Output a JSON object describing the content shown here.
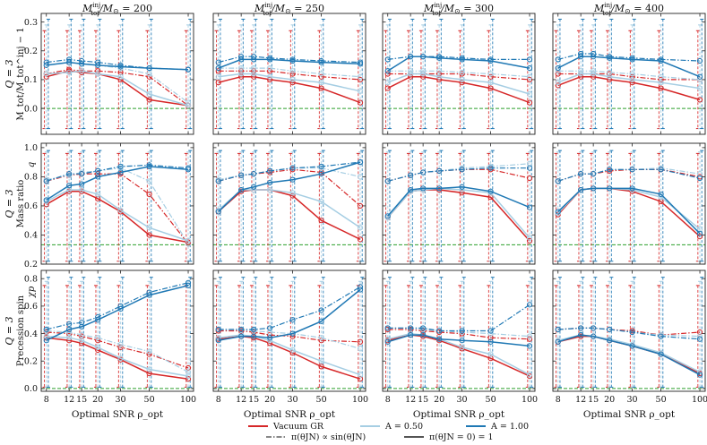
{
  "figure": {
    "col_titles": [
      "M_tot^inj/M_sun = 200",
      "M_tot^inj/M_sun = 250",
      "M_tot^inj/M_sun = 300",
      "M_tot^inj/M_sun = 400"
    ],
    "col_title_parts": [
      {
        "pre": "M",
        "sup": "inj",
        "sub": "tot",
        "post": "/M",
        "sun": "⊙",
        "eq": " = 200"
      },
      {
        "pre": "M",
        "sup": "inj",
        "sub": "tot",
        "post": "/M",
        "sun": "⊙",
        "eq": " = 250"
      },
      {
        "pre": "M",
        "sup": "inj",
        "sub": "tot",
        "post": "/M",
        "sun": "⊙",
        "eq": " = 300"
      },
      {
        "pre": "M",
        "sup": "inj",
        "sub": "tot",
        "post": "/M",
        "sun": "⊙",
        "eq": " = 400"
      }
    ],
    "row_labels": [
      {
        "line1": "Q = 3",
        "line2": "M_tot/M_tot^inj − 1",
        "param": ""
      },
      {
        "line1": "Q = 3",
        "line2": "Mass ratio",
        "param": "q"
      },
      {
        "line1": "Q = 3",
        "line2": "Precession spin",
        "param": "χp"
      }
    ],
    "xlabel": "Optimal SNR ρ_opt",
    "xticks": [
      "8",
      "12",
      "15",
      "20",
      "30",
      "50",
      "100"
    ],
    "yticks": [
      [
        "0.0",
        "0.1",
        "0.2",
        "0.3"
      ],
      [
        "0.2",
        "0.4",
        "0.6",
        "0.8",
        "1.0"
      ],
      [
        "0.0",
        "0.2",
        "0.4",
        "0.6",
        "0.8"
      ]
    ]
  },
  "legend": {
    "items": [
      {
        "label": "Vacuum GR",
        "color": "#d62728",
        "style": "solid"
      },
      {
        "label": "A = 0.50",
        "color": "#a6cee3",
        "style": "solid"
      },
      {
        "label": "A = 1.00",
        "color": "#1f78b4",
        "style": "solid"
      },
      {
        "label": "π(θJN) ∝ sin(θJN)",
        "color": "#888888",
        "style": "dashdot"
      },
      {
        "label": "π(θJN = 0) = 1",
        "color": "#555555",
        "style": "solid"
      }
    ]
  },
  "chart_data": {
    "type": "line",
    "x": [
      8,
      12,
      15,
      20,
      30,
      50,
      100
    ],
    "xscale": "log",
    "xlim": [
      7.3,
      110
    ],
    "colors": {
      "gr": "#d62728",
      "a05": "#a6cee3",
      "a10": "#1f78b4",
      "truth": "#2ca02c"
    },
    "rows": [
      {
        "name": "mass",
        "ylim": [
          -0.09,
          0.33
        ],
        "truth": 0.0
      },
      {
        "name": "q",
        "ylim": [
          0.2,
          1.03
        ],
        "truth": 0.333
      },
      {
        "name": "chip",
        "ylim": [
          -0.02,
          0.86
        ],
        "truth": 0.0
      }
    ],
    "panels": [
      [
        {
          "gr_s": [
            0.11,
            0.13,
            0.125,
            0.12,
            0.1,
            0.03,
            0.01
          ],
          "gr_d": [
            0.12,
            0.135,
            0.13,
            0.13,
            0.125,
            0.11,
            0.01
          ],
          "a05_s": [
            0.12,
            0.125,
            0.13,
            0.12,
            0.11,
            0.05,
            0.01
          ],
          "a05_d": [
            0.15,
            0.16,
            0.155,
            0.15,
            0.14,
            0.12,
            0.02
          ],
          "a10_s": [
            0.15,
            0.16,
            0.155,
            0.15,
            0.145,
            0.14,
            0.135
          ],
          "a10_d": [
            0.16,
            0.17,
            0.165,
            0.16,
            0.15,
            0.14,
            0.135
          ]
        },
        {
          "gr_s": [
            0.09,
            0.11,
            0.11,
            0.1,
            0.09,
            0.07,
            0.02
          ],
          "gr_d": [
            0.13,
            0.13,
            0.13,
            0.13,
            0.12,
            0.11,
            0.1
          ],
          "a05_s": [
            0.11,
            0.12,
            0.12,
            0.11,
            0.1,
            0.09,
            0.06
          ],
          "a05_d": [
            0.14,
            0.14,
            0.14,
            0.14,
            0.13,
            0.12,
            0.11
          ],
          "a10_s": [
            0.14,
            0.17,
            0.17,
            0.17,
            0.165,
            0.16,
            0.155
          ],
          "a10_d": [
            0.16,
            0.18,
            0.18,
            0.175,
            0.17,
            0.165,
            0.16
          ]
        },
        {
          "gr_s": [
            0.07,
            0.11,
            0.11,
            0.1,
            0.09,
            0.07,
            0.02
          ],
          "gr_d": [
            0.12,
            0.12,
            0.12,
            0.12,
            0.12,
            0.11,
            0.1
          ],
          "a05_s": [
            0.09,
            0.12,
            0.12,
            0.11,
            0.1,
            0.09,
            0.05
          ],
          "a05_d": [
            0.13,
            0.13,
            0.13,
            0.13,
            0.125,
            0.12,
            0.11
          ],
          "a10_s": [
            0.13,
            0.18,
            0.18,
            0.175,
            0.17,
            0.165,
            0.14
          ],
          "a10_d": [
            0.17,
            0.18,
            0.18,
            0.18,
            0.175,
            0.17,
            0.17
          ]
        },
        {
          "gr_s": [
            0.08,
            0.11,
            0.11,
            0.1,
            0.09,
            0.07,
            0.03
          ],
          "gr_d": [
            0.12,
            0.12,
            0.12,
            0.12,
            0.11,
            0.1,
            0.1
          ],
          "a05_s": [
            0.09,
            0.12,
            0.12,
            0.11,
            0.1,
            0.09,
            0.07
          ],
          "a05_d": [
            0.13,
            0.13,
            0.13,
            0.125,
            0.12,
            0.11,
            0.1
          ],
          "a10_s": [
            0.14,
            0.18,
            0.18,
            0.175,
            0.17,
            0.165,
            0.11
          ],
          "a10_d": [
            0.17,
            0.19,
            0.19,
            0.18,
            0.175,
            0.17,
            0.165
          ]
        }
      ],
      [
        {
          "gr_s": [
            0.61,
            0.7,
            0.7,
            0.65,
            0.56,
            0.4,
            0.35
          ],
          "gr_d": [
            0.77,
            0.81,
            0.82,
            0.82,
            0.82,
            0.68,
            0.34
          ],
          "a05_s": [
            0.63,
            0.71,
            0.71,
            0.68,
            0.57,
            0.45,
            0.36
          ],
          "a05_d": [
            0.78,
            0.81,
            0.83,
            0.84,
            0.86,
            0.77,
            0.34
          ],
          "a10_s": [
            0.64,
            0.74,
            0.75,
            0.8,
            0.83,
            0.87,
            0.85
          ],
          "a10_d": [
            0.77,
            0.82,
            0.82,
            0.84,
            0.87,
            0.88,
            0.86
          ]
        },
        {
          "gr_s": [
            0.56,
            0.7,
            0.71,
            0.71,
            0.67,
            0.5,
            0.37
          ],
          "gr_d": [
            0.77,
            0.81,
            0.82,
            0.83,
            0.85,
            0.83,
            0.6
          ],
          "a05_s": [
            0.57,
            0.71,
            0.71,
            0.71,
            0.69,
            0.63,
            0.45
          ],
          "a05_d": [
            0.78,
            0.81,
            0.82,
            0.84,
            0.86,
            0.86,
            0.8
          ],
          "a10_s": [
            0.56,
            0.71,
            0.73,
            0.76,
            0.78,
            0.82,
            0.9
          ],
          "a10_d": [
            0.77,
            0.81,
            0.82,
            0.84,
            0.86,
            0.87,
            0.9
          ]
        },
        {
          "gr_s": [
            0.52,
            0.7,
            0.71,
            0.71,
            0.69,
            0.66,
            0.36
          ],
          "gr_d": [
            0.77,
            0.81,
            0.83,
            0.84,
            0.85,
            0.85,
            0.79
          ],
          "a05_s": [
            0.52,
            0.7,
            0.71,
            0.72,
            0.71,
            0.69,
            0.38
          ],
          "a05_d": [
            0.77,
            0.81,
            0.83,
            0.84,
            0.86,
            0.87,
            0.89
          ],
          "a10_s": [
            0.53,
            0.71,
            0.72,
            0.72,
            0.73,
            0.7,
            0.59
          ],
          "a10_d": [
            0.77,
            0.81,
            0.83,
            0.84,
            0.85,
            0.86,
            0.86
          ]
        },
        {
          "gr_s": [
            0.54,
            0.71,
            0.72,
            0.72,
            0.7,
            0.63,
            0.39
          ],
          "gr_d": [
            0.77,
            0.82,
            0.82,
            0.84,
            0.85,
            0.85,
            0.8
          ],
          "a05_s": [
            0.55,
            0.71,
            0.72,
            0.72,
            0.71,
            0.66,
            0.44
          ],
          "a05_d": [
            0.77,
            0.82,
            0.82,
            0.85,
            0.85,
            0.86,
            0.82
          ],
          "a10_s": [
            0.56,
            0.71,
            0.72,
            0.72,
            0.72,
            0.68,
            0.41
          ],
          "a10_d": [
            0.77,
            0.82,
            0.82,
            0.85,
            0.85,
            0.85,
            0.79
          ]
        }
      ],
      [
        {
          "gr_s": [
            0.37,
            0.35,
            0.33,
            0.28,
            0.21,
            0.11,
            0.07
          ],
          "gr_d": [
            0.41,
            0.4,
            0.38,
            0.35,
            0.3,
            0.25,
            0.15
          ],
          "a05_s": [
            0.38,
            0.37,
            0.35,
            0.3,
            0.22,
            0.14,
            0.09
          ],
          "a05_d": [
            0.42,
            0.41,
            0.39,
            0.37,
            0.32,
            0.27,
            0.12
          ],
          "a10_s": [
            0.35,
            0.43,
            0.45,
            0.5,
            0.58,
            0.68,
            0.75
          ],
          "a10_d": [
            0.43,
            0.47,
            0.48,
            0.52,
            0.6,
            0.7,
            0.77
          ]
        },
        {
          "gr_s": [
            0.36,
            0.38,
            0.37,
            0.33,
            0.26,
            0.16,
            0.07
          ],
          "gr_d": [
            0.42,
            0.42,
            0.41,
            0.39,
            0.38,
            0.35,
            0.34
          ],
          "a05_s": [
            0.37,
            0.39,
            0.38,
            0.35,
            0.28,
            0.2,
            0.1
          ],
          "a05_d": [
            0.43,
            0.43,
            0.42,
            0.41,
            0.4,
            0.37,
            0.29
          ],
          "a10_s": [
            0.35,
            0.38,
            0.38,
            0.37,
            0.4,
            0.49,
            0.72
          ],
          "a10_d": [
            0.43,
            0.43,
            0.43,
            0.44,
            0.5,
            0.57,
            0.74
          ]
        },
        {
          "gr_s": [
            0.35,
            0.39,
            0.38,
            0.35,
            0.29,
            0.22,
            0.09
          ],
          "gr_d": [
            0.43,
            0.43,
            0.42,
            0.41,
            0.4,
            0.37,
            0.36
          ],
          "a05_s": [
            0.36,
            0.4,
            0.39,
            0.36,
            0.3,
            0.25,
            0.1
          ],
          "a05_d": [
            0.44,
            0.44,
            0.43,
            0.42,
            0.41,
            0.4,
            0.38
          ],
          "a10_s": [
            0.34,
            0.39,
            0.39,
            0.36,
            0.35,
            0.34,
            0.31
          ],
          "a10_d": [
            0.44,
            0.44,
            0.44,
            0.42,
            0.42,
            0.42,
            0.61
          ]
        },
        {
          "gr_s": [
            0.34,
            0.38,
            0.38,
            0.35,
            0.31,
            0.25,
            0.11
          ],
          "gr_d": [
            0.43,
            0.44,
            0.44,
            0.43,
            0.42,
            0.39,
            0.41
          ],
          "a05_s": [
            0.35,
            0.39,
            0.38,
            0.36,
            0.32,
            0.26,
            0.12
          ],
          "a05_d": [
            0.43,
            0.44,
            0.44,
            0.43,
            0.41,
            0.39,
            0.38
          ],
          "a10_s": [
            0.34,
            0.39,
            0.38,
            0.35,
            0.31,
            0.25,
            0.1
          ],
          "a10_d": [
            0.43,
            0.44,
            0.44,
            0.43,
            0.41,
            0.38,
            0.36
          ]
        }
      ]
    ],
    "error_bars": [
      {
        "lo": -0.07,
        "hi_gr": 0.27,
        "hi_a05": 0.29,
        "hi_a10": 0.31
      },
      {
        "lo": 0.22,
        "hi_gr": 0.96,
        "hi_a05": 0.97,
        "hi_a10": 0.98
      },
      {
        "lo": 0.01,
        "hi_gr": 0.75,
        "hi_a05": 0.78,
        "hi_a10": 0.81
      }
    ]
  }
}
